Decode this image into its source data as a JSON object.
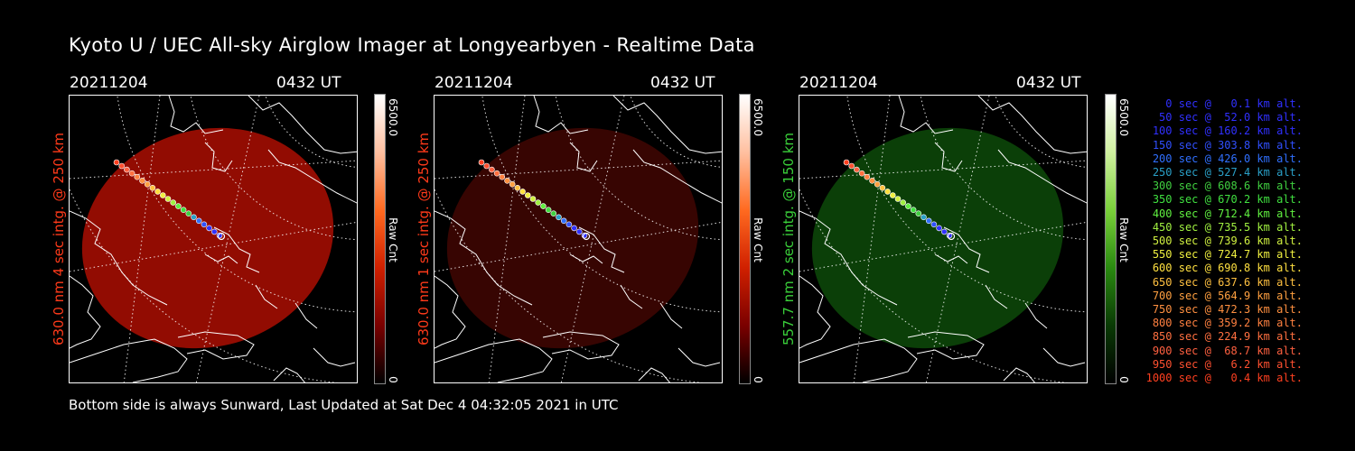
{
  "title": "Kyoto U / UEC All-sky Airglow Imager at Longyearbyen - Realtime Data",
  "footer": "Bottom side is always Sunward, Last Updated at Sat Dec  4 04:32:05 2021 in UTC",
  "panels": [
    {
      "date": "20211204",
      "time": "0432 UT",
      "side_label": "630.0 nm 4 sec intg. @ 250 km",
      "side_color": "#ff3a1a",
      "colorbar_max": "6500.0",
      "colorbar_min": "0",
      "colorbar_label": "Raw Cnt",
      "colormap": [
        "#ffffff",
        "#ffc0a0",
        "#ff6a20",
        "#d02000",
        "#7a0000",
        "#000000"
      ],
      "disk_color": "#9a0d02",
      "disk_opacity": "0.95"
    },
    {
      "date": "20211204",
      "time": "0432 UT",
      "side_label": "630.0 nm 1 sec intg. @ 250 km",
      "side_color": "#ff3a1a",
      "colorbar_max": "6500.0",
      "colorbar_min": "0",
      "colorbar_label": "Raw Cnt",
      "colormap": [
        "#ffffff",
        "#ffc0a0",
        "#ff6a20",
        "#d02000",
        "#7a0000",
        "#000000"
      ],
      "disk_color": "#3a0502",
      "disk_opacity": "0.95"
    },
    {
      "date": "20211204",
      "time": "0432 UT",
      "side_label": "557.7 nm 2 sec intg. @ 150 km",
      "side_color": "#3ad03a",
      "colorbar_max": "6500.0",
      "colorbar_min": "0",
      "colorbar_label": "Raw Cnt",
      "colormap": [
        "#ffffff",
        "#d0f0a0",
        "#7ad03a",
        "#2a8a10",
        "#0a3a05",
        "#000000"
      ],
      "disk_color": "#0c4208",
      "disk_opacity": "0.95"
    }
  ],
  "legend": [
    {
      "text": "0 sec @   0.1 km alt.",
      "color": "#3030ff"
    },
    {
      "text": "50 sec @  52.0 km alt.",
      "color": "#3030ff"
    },
    {
      "text": "100 sec @ 160.2 km alt.",
      "color": "#3030ff"
    },
    {
      "text": "150 sec @ 303.8 km alt.",
      "color": "#3050ff"
    },
    {
      "text": "200 sec @ 426.0 km alt.",
      "color": "#3070ff"
    },
    {
      "text": "250 sec @ 527.4 km alt.",
      "color": "#2aa0c8"
    },
    {
      "text": "300 sec @ 608.6 km alt.",
      "color": "#40d040"
    },
    {
      "text": "350 sec @ 670.2 km alt.",
      "color": "#40e040"
    },
    {
      "text": "400 sec @ 712.4 km alt.",
      "color": "#60f040"
    },
    {
      "text": "450 sec @ 735.5 km alt.",
      "color": "#a0f040"
    },
    {
      "text": "500 sec @ 739.6 km alt.",
      "color": "#d0f040"
    },
    {
      "text": "550 sec @ 724.7 km alt.",
      "color": "#f0f040"
    },
    {
      "text": "600 sec @ 690.8 km alt.",
      "color": "#ffe040"
    },
    {
      "text": "650 sec @ 637.6 km alt.",
      "color": "#ffc040"
    },
    {
      "text": "700 sec @ 564.9 km alt.",
      "color": "#ffa040"
    },
    {
      "text": "750 sec @ 472.3 km alt.",
      "color": "#ff9040"
    },
    {
      "text": "800 sec @ 359.2 km alt.",
      "color": "#ff8040"
    },
    {
      "text": "850 sec @ 224.9 km alt.",
      "color": "#ff7040"
    },
    {
      "text": "900 sec @  68.7 km alt.",
      "color": "#ff6040"
    },
    {
      "text": "950 sec @   6.2 km alt.",
      "color": "#ff5030"
    },
    {
      "text": "1000 sec @   0.4 km alt.",
      "color": "#ff4020"
    }
  ],
  "icons": [
    "rocket-trajectory-marker"
  ]
}
